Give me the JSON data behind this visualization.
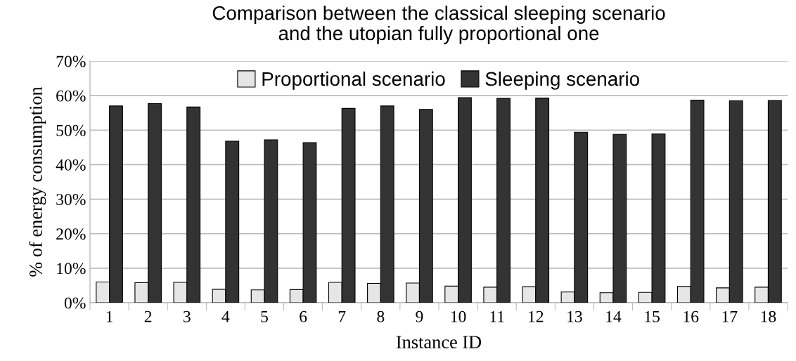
{
  "chart_data": {
    "type": "bar",
    "title": "Comparison between the classical sleeping scenario\nand the utopian fully proportional one",
    "xlabel": "Instance ID",
    "ylabel": "% of energy consumption",
    "categories": [
      "1",
      "2",
      "3",
      "4",
      "5",
      "6",
      "7",
      "8",
      "9",
      "10",
      "11",
      "12",
      "13",
      "14",
      "15",
      "16",
      "17",
      "18"
    ],
    "series": [
      {
        "name": "Proportional scenario",
        "color": "#e6e6e6",
        "values": [
          6.0,
          5.8,
          5.9,
          3.9,
          3.7,
          3.8,
          5.9,
          5.6,
          5.7,
          4.8,
          4.5,
          4.6,
          3.1,
          2.9,
          3.0,
          4.7,
          4.3,
          4.5
        ]
      },
      {
        "name": "Sleeping scenario",
        "color": "#333333",
        "values": [
          57.0,
          57.7,
          56.7,
          46.8,
          47.2,
          46.4,
          56.3,
          57.0,
          56.0,
          59.4,
          59.2,
          59.3,
          49.4,
          48.8,
          48.9,
          58.7,
          58.5,
          58.6
        ]
      }
    ],
    "ylim": [
      0,
      70
    ],
    "yticks": [
      {
        "value": 0,
        "label": "0%"
      },
      {
        "value": 10,
        "label": "10%"
      },
      {
        "value": 20,
        "label": "20%"
      },
      {
        "value": 30,
        "label": "30%"
      },
      {
        "value": 40,
        "label": "40%"
      },
      {
        "value": 50,
        "label": "50%"
      },
      {
        "value": 60,
        "label": "60%"
      },
      {
        "value": 70,
        "label": "70%"
      }
    ],
    "grid": "y",
    "legend": "top"
  }
}
